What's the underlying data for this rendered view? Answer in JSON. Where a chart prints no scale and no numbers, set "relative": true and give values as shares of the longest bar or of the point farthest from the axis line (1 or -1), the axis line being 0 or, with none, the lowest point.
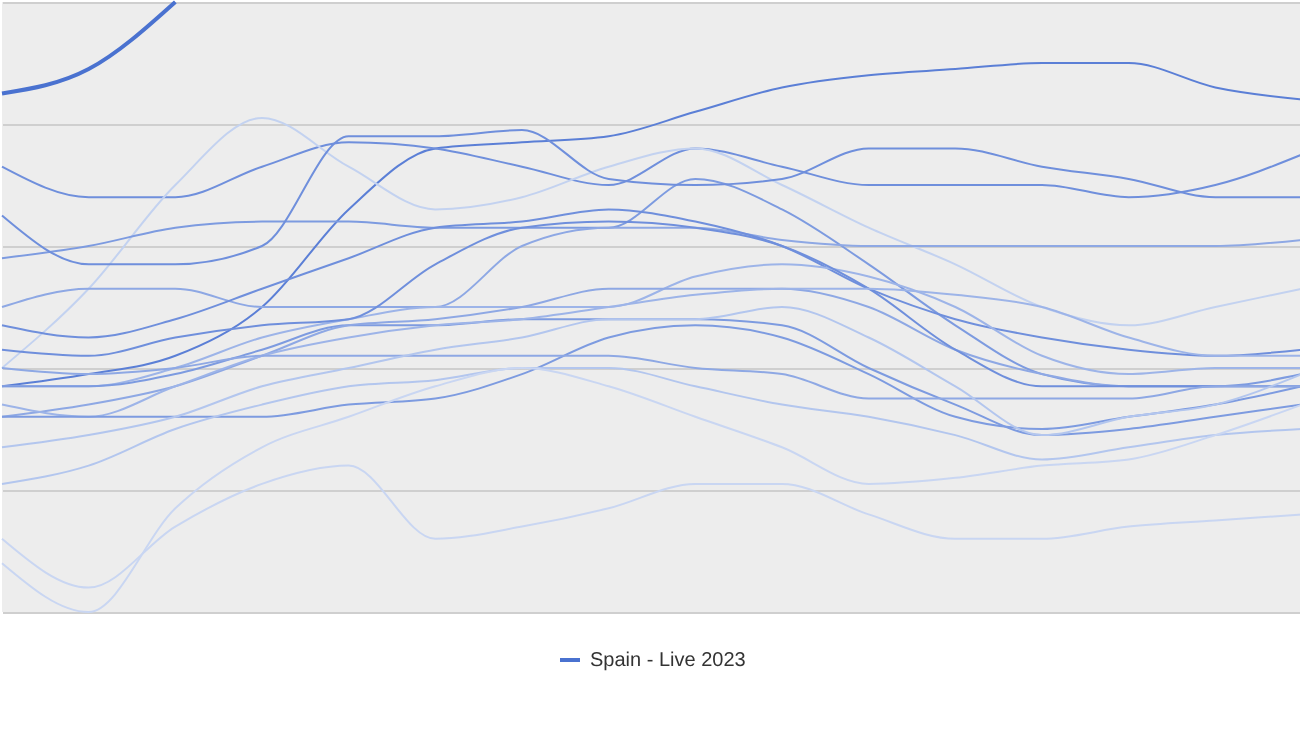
{
  "chart_data": {
    "type": "line",
    "relative": true,
    "grid": "y",
    "legend": "bottom",
    "categories": [
      null,
      null,
      null,
      null,
      null,
      null,
      null,
      null,
      null,
      null,
      null,
      null,
      null,
      null,
      null,
      null
    ],
    "series": [
      {
        "color": "#5b7fd6",
        "values": [
          0.37,
          0.39,
          0.42,
          0.5,
          0.66,
          0.76,
          0.77,
          0.78,
          0.82,
          0.86,
          0.88,
          0.89,
          0.9,
          0.9,
          0.86,
          0.84
        ]
      },
      {
        "color": "#6f8fdc",
        "values": [
          0.73,
          0.68,
          0.68,
          0.73,
          0.77,
          0.76,
          0.73,
          0.7,
          0.76,
          0.73,
          0.7,
          0.7,
          0.7,
          0.68,
          0.7,
          0.75
        ]
      },
      {
        "color": "#c3d2f0",
        "values": [
          0.4,
          0.53,
          0.7,
          0.81,
          0.73,
          0.66,
          0.68,
          0.73,
          0.76,
          0.7,
          0.63,
          0.57,
          0.5,
          0.47,
          0.5,
          0.53
        ]
      },
      {
        "color": "#7d9be0",
        "values": [
          0.58,
          0.6,
          0.63,
          0.64,
          0.64,
          0.63,
          0.63,
          0.63,
          0.71,
          0.66,
          0.57,
          0.47,
          0.39,
          0.37,
          0.37,
          0.39
        ]
      },
      {
        "color": "#8ea8e4",
        "values": [
          0.5,
          0.53,
          0.53,
          0.5,
          0.5,
          0.5,
          0.6,
          0.63,
          0.63,
          0.61,
          0.6,
          0.6,
          0.6,
          0.6,
          0.6,
          0.61
        ]
      },
      {
        "color": "#6f8fdc",
        "values": [
          0.47,
          0.45,
          0.48,
          0.53,
          0.58,
          0.63,
          0.64,
          0.66,
          0.64,
          0.6,
          0.53,
          0.48,
          0.45,
          0.43,
          0.42,
          0.43
        ]
      },
      {
        "color": "#9db4e8",
        "values": [
          0.37,
          0.37,
          0.4,
          0.45,
          0.48,
          0.5,
          0.5,
          0.5,
          0.55,
          0.57,
          0.55,
          0.5,
          0.42,
          0.39,
          0.4,
          0.4
        ]
      },
      {
        "color": "#7d9be0",
        "values": [
          0.37,
          0.37,
          0.39,
          0.43,
          0.47,
          0.47,
          0.48,
          0.48,
          0.48,
          0.47,
          0.4,
          0.34,
          0.29,
          0.3,
          0.32,
          0.34
        ]
      },
      {
        "color": "#8ea8e4",
        "values": [
          0.32,
          0.34,
          0.37,
          0.42,
          0.47,
          0.48,
          0.5,
          0.53,
          0.53,
          0.53,
          0.5,
          0.43,
          0.39,
          0.37,
          0.37,
          0.37
        ]
      },
      {
        "color": "#6f8fdc",
        "values": [
          0.43,
          0.42,
          0.45,
          0.47,
          0.48,
          0.57,
          0.63,
          0.64,
          0.63,
          0.6,
          0.53,
          0.43,
          0.37,
          0.37,
          0.37,
          0.37
        ]
      },
      {
        "color": "#9db4e8",
        "values": [
          0.34,
          0.32,
          0.37,
          0.42,
          0.45,
          0.47,
          0.48,
          0.5,
          0.52,
          0.53,
          0.53,
          0.52,
          0.5,
          0.45,
          0.42,
          0.42
        ]
      },
      {
        "color": "#7d9be0",
        "values": [
          0.32,
          0.32,
          0.32,
          0.32,
          0.34,
          0.35,
          0.39,
          0.45,
          0.47,
          0.45,
          0.39,
          0.32,
          0.3,
          0.32,
          0.34,
          0.37
        ]
      },
      {
        "color": "#b3c6ee",
        "values": [
          0.21,
          0.24,
          0.3,
          0.34,
          0.37,
          0.38,
          0.4,
          0.4,
          0.37,
          0.34,
          0.32,
          0.29,
          0.25,
          0.27,
          0.29,
          0.3
        ]
      },
      {
        "color": "#c9d6f2",
        "values": [
          0.12,
          0.04,
          0.14,
          0.21,
          0.24,
          0.12,
          0.14,
          0.17,
          0.21,
          0.21,
          0.16,
          0.12,
          0.12,
          0.14,
          0.15,
          0.16
        ]
      },
      {
        "color": "#c9d6f2",
        "values": [
          0.08,
          0.0,
          0.17,
          0.27,
          0.32,
          0.37,
          0.4,
          0.37,
          0.32,
          0.27,
          0.21,
          0.22,
          0.24,
          0.25,
          0.29,
          0.34
        ]
      },
      {
        "color": "#8ea8e4",
        "values": [
          0.4,
          0.39,
          0.4,
          0.42,
          0.42,
          0.42,
          0.42,
          0.42,
          0.4,
          0.39,
          0.35,
          0.35,
          0.35,
          0.35,
          0.37,
          0.37
        ]
      },
      {
        "color": "#b3c6ee",
        "values": [
          0.27,
          0.29,
          0.32,
          0.37,
          0.4,
          0.43,
          0.45,
          0.48,
          0.48,
          0.5,
          0.45,
          0.37,
          0.29,
          0.32,
          0.34,
          0.39
        ]
      },
      {
        "color": "#6f8fdc",
        "values": [
          0.65,
          0.57,
          0.57,
          0.6,
          0.78,
          0.78,
          0.79,
          0.71,
          0.7,
          0.71,
          0.76,
          0.76,
          0.73,
          0.71,
          0.68,
          0.68
        ]
      },
      {
        "name": "Spain - Live 2023",
        "color": "#4a72d0",
        "values": [
          0.85,
          0.89,
          1.0,
          null,
          null,
          null,
          null,
          null,
          null,
          null,
          null,
          null,
          null,
          null,
          null,
          null
        ]
      }
    ]
  }
}
